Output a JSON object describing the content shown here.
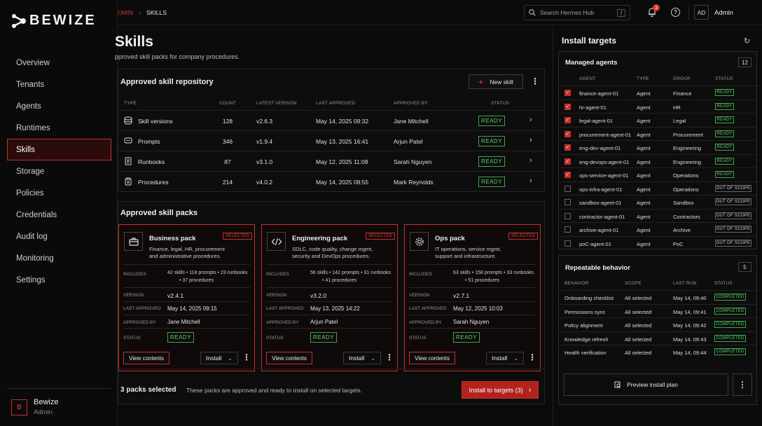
{
  "brand": {
    "name": "BEWIZE"
  },
  "nav": {
    "items": [
      {
        "label": "Overview",
        "active": false
      },
      {
        "label": "Tenants",
        "active": false
      },
      {
        "label": "Agents",
        "active": false
      },
      {
        "label": "Runtimes",
        "active": false
      },
      {
        "label": "Skills",
        "active": true
      },
      {
        "label": "Storage",
        "active": false
      },
      {
        "label": "Policies",
        "active": false
      },
      {
        "label": "Credentials",
        "active": false
      },
      {
        "label": "Audit log",
        "active": false
      },
      {
        "label": "Monitoring",
        "active": false
      },
      {
        "label": "Settings",
        "active": false
      }
    ]
  },
  "user": {
    "initial": "B",
    "name": "Bewize",
    "role": "Admin"
  },
  "topbar": {
    "breadcrumb": [
      "OMIN",
      "SKILLS"
    ],
    "search_placeholder": "Search Hermes Hub",
    "search_shortcut": "/",
    "notifications": "3",
    "avatar": "AD",
    "account": "Admin"
  },
  "page": {
    "title": "Skills",
    "subtitle": "pproved skill packs for company procedures."
  },
  "repo": {
    "title": "Approved skill repository",
    "new_label": "New skill",
    "columns": [
      "TYPE",
      "COUNT",
      "LATEST VERSION",
      "LAST APPROVED",
      "APPROVED BY",
      "STATUS"
    ],
    "rows": [
      {
        "icon": "database-icon",
        "type": "Skill versions",
        "count": "128",
        "version": "v2.6.3",
        "approved": "May 14, 2025 09:32",
        "by": "Jane Mitchell",
        "status": "READY"
      },
      {
        "icon": "chat-icon",
        "type": "Prompts",
        "count": "346",
        "version": "v1.9.4",
        "approved": "May 13, 2025 16:41",
        "by": "Arjun Patel",
        "status": "READY"
      },
      {
        "icon": "document-icon",
        "type": "Runbooks",
        "count": "87",
        "version": "v3.1.0",
        "approved": "May 12, 2025 11:08",
        "by": "Sarah Nguyen",
        "status": "READY"
      },
      {
        "icon": "clipboard-icon",
        "type": "Procedures",
        "count": "214",
        "version": "v4.0.2",
        "approved": "May 14, 2025 08:55",
        "by": "Mark Reynolds",
        "status": "READY"
      }
    ]
  },
  "packs": {
    "title": "Approved skill packs",
    "labels": {
      "includes": "INCLUDES",
      "version": "VERSION",
      "last_approved": "LAST APPROVED",
      "approved_by": "APPROVED BY",
      "status": "STATUS",
      "selected": "SELECTED",
      "view": "View contents",
      "install": "Install"
    },
    "items": [
      {
        "icon": "briefcase-icon",
        "name": "Business pack",
        "desc1": "Finance, legal, HR, procurement",
        "desc2": "and administrative procedures.",
        "inc1": "42 skills  •  118 prompts  •  23 runbooks",
        "inc2": "•  37 procedures",
        "version": "v2.4.1",
        "approved": "May 14, 2025 09:15",
        "by": "Jane Mitchell",
        "status": "READY"
      },
      {
        "icon": "code-icon",
        "name": "Engineering pack",
        "desc1": "SDLC, code quality, change mgmt,",
        "desc2": "security and DevOps procedures.",
        "inc1": "56 skills  •  142 prompts  •  31 runbooks",
        "inc2": "•  41 procedures",
        "version": "v3.2.0",
        "approved": "May 13, 2025 14:22",
        "by": "Arjun Patel",
        "status": "READY"
      },
      {
        "icon": "gear-icon",
        "name": "Ops pack",
        "desc1": "IT operations, service mgmt,",
        "desc2": "support and infrastructure.",
        "inc1": "63 skills  •  158 prompts  •  33 runbooks",
        "inc2": "•  51 procedures",
        "version": "v2.7.1",
        "approved": "May 12, 2025 10:03",
        "by": "Sarah Nguyen",
        "status": "READY"
      }
    ],
    "footer_count": "3 packs selected",
    "footer_note": "These packs are approved and ready to install on selected targets.",
    "install_all": "Install to targets (3)"
  },
  "targets": {
    "title": "Install targets",
    "managed": {
      "title": "Managed agents",
      "count": "12",
      "columns": [
        "AGENT",
        "TYPE",
        "GROUP",
        "STATUS"
      ],
      "rows": [
        {
          "name": "finance-agent-01",
          "type": "Agent",
          "group": "Finance",
          "status": "READY",
          "checked": true
        },
        {
          "name": "hr-agent-01",
          "type": "Agent",
          "group": "HR",
          "status": "READY",
          "checked": true
        },
        {
          "name": "legal-agent-01",
          "type": "Agent",
          "group": "Legal",
          "status": "READY",
          "checked": true
        },
        {
          "name": "procurement-agent-01",
          "type": "Agent",
          "group": "Procurement",
          "status": "READY",
          "checked": true
        },
        {
          "name": "eng-dev-agent-01",
          "type": "Agent",
          "group": "Engineering",
          "status": "READY",
          "checked": true
        },
        {
          "name": "eng-devops-agent-01",
          "type": "Agent",
          "group": "Engineering",
          "status": "READY",
          "checked": true
        },
        {
          "name": "ops-service-agent-01",
          "type": "Agent",
          "group": "Operations",
          "status": "READY",
          "checked": true
        },
        {
          "name": "ops-infra-agent-01",
          "type": "Agent",
          "group": "Operations",
          "status": "OUT OF SCOPE",
          "checked": false
        },
        {
          "name": "sandbox-agent-01",
          "type": "Agent",
          "group": "Sandbox",
          "status": "OUT OF SCOPE",
          "checked": false
        },
        {
          "name": "contractor-agent-01",
          "type": "Agent",
          "group": "Contractors",
          "status": "OUT OF SCOPE",
          "checked": false
        },
        {
          "name": "archive-agent-01",
          "type": "Agent",
          "group": "Archive",
          "status": "OUT OF SCOPE",
          "checked": false
        },
        {
          "name": "poC-agent-01",
          "type": "Agent",
          "group": "PoC",
          "status": "OUT OF SCOPE",
          "checked": false
        }
      ]
    },
    "repeatable": {
      "title": "Repeatable behavior",
      "count": "5",
      "columns": [
        "BEHAVIOR",
        "SCOPE",
        "LAST RUN",
        "STATUS"
      ],
      "rows": [
        {
          "name": "Onboarding checklist",
          "scope": "All selected",
          "last": "May 14, 09:40",
          "status": "COMPLETED"
        },
        {
          "name": "Permissions sync",
          "scope": "All selected",
          "last": "May 14, 09:41",
          "status": "COMPLETED"
        },
        {
          "name": "Policy alignment",
          "scope": "All selected",
          "last": "May 14, 09:42",
          "status": "COMPLETED"
        },
        {
          "name": "Knowledge refresh",
          "scope": "All selected",
          "last": "May 14, 09:43",
          "status": "COMPLETED"
        },
        {
          "name": "Health verification",
          "scope": "All selected",
          "last": "May 14, 09:44",
          "status": "COMPLETED"
        }
      ]
    },
    "preview_label": "Preview install plan"
  },
  "colors": {
    "accent": "#c6302c",
    "ready": "#5ed06d",
    "background": "#0b0b0b"
  }
}
